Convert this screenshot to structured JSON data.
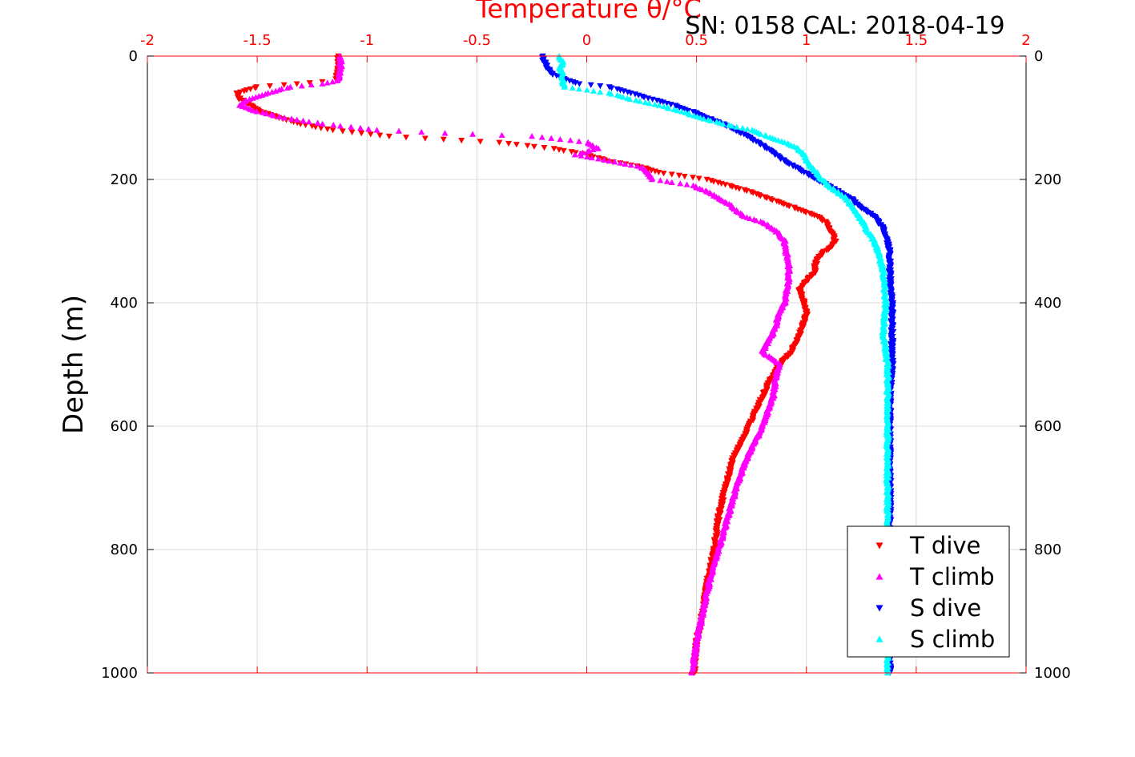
{
  "chart_data": {
    "type": "scatter",
    "title": "SN: 0158  CAL: 2018-04-19",
    "xlabel_top": "Temperature θ/°C",
    "ylabel": "Depth (m)",
    "xlim": [
      -2,
      2
    ],
    "ylim": [
      0,
      1000
    ],
    "y_reversed": true,
    "x_ticks": [
      "-2",
      "-1.5",
      "-1",
      "-0.5",
      "0",
      "0.5",
      "1",
      "1.5",
      "2"
    ],
    "x_tick_values": [
      -2,
      -1.5,
      -1,
      -0.5,
      0,
      0.5,
      1,
      1.5,
      2
    ],
    "y_ticks": [
      "0",
      "200",
      "400",
      "600",
      "800",
      "1000"
    ],
    "y_tick_values": [
      0,
      200,
      400,
      600,
      800,
      1000
    ],
    "grid": true,
    "legend_position": "bottom-right",
    "series": [
      {
        "name": "T dive",
        "color": "#ff0000",
        "marker": "triangle-down",
        "depth": [
          0,
          20,
          40,
          50,
          60,
          70,
          80,
          90,
          100,
          110,
          120,
          130,
          135,
          140,
          150,
          160,
          170,
          180,
          190,
          200,
          210,
          220,
          230,
          240,
          250,
          260,
          270,
          280,
          290,
          300,
          310,
          320,
          330,
          340,
          350,
          360,
          370,
          380,
          400,
          420,
          440,
          460,
          480,
          500,
          530,
          560,
          600,
          650,
          700,
          750,
          800,
          850,
          900,
          950,
          1000
        ],
        "temp": [
          -1.13,
          -1.13,
          -1.14,
          -1.5,
          -1.59,
          -1.58,
          -1.53,
          -1.48,
          -1.4,
          -1.3,
          -1.16,
          -0.9,
          -0.65,
          -0.4,
          -0.15,
          0.0,
          0.1,
          0.25,
          0.35,
          0.55,
          0.65,
          0.75,
          0.82,
          0.9,
          0.98,
          1.05,
          1.09,
          1.1,
          1.12,
          1.13,
          1.11,
          1.07,
          1.05,
          1.04,
          1.04,
          1.01,
          0.99,
          0.97,
          0.99,
          1.0,
          0.98,
          0.96,
          0.93,
          0.88,
          0.83,
          0.79,
          0.74,
          0.67,
          0.63,
          0.6,
          0.58,
          0.55,
          0.53,
          0.5,
          0.49
        ]
      },
      {
        "name": "T climb",
        "color": "#ff00ff",
        "marker": "triangle-up",
        "depth": [
          0,
          20,
          40,
          45,
          50,
          60,
          70,
          80,
          90,
          100,
          110,
          120,
          125,
          130,
          135,
          140,
          150,
          160,
          170,
          180,
          190,
          200,
          210,
          220,
          230,
          240,
          250,
          260,
          270,
          280,
          290,
          300,
          320,
          340,
          360,
          380,
          400,
          420,
          440,
          460,
          480,
          490,
          500,
          520,
          550,
          580,
          600,
          650,
          700,
          750,
          800,
          850,
          900,
          950,
          1000
        ],
        "temp": [
          -1.12,
          -1.12,
          -1.13,
          -1.2,
          -1.35,
          -1.45,
          -1.54,
          -1.58,
          -1.5,
          -1.38,
          -1.2,
          -0.95,
          -0.65,
          -0.25,
          -0.12,
          0.0,
          0.05,
          -0.05,
          0.1,
          0.25,
          0.28,
          0.3,
          0.48,
          0.55,
          0.6,
          0.65,
          0.68,
          0.72,
          0.8,
          0.85,
          0.88,
          0.9,
          0.91,
          0.92,
          0.92,
          0.91,
          0.9,
          0.87,
          0.86,
          0.83,
          0.8,
          0.84,
          0.88,
          0.86,
          0.85,
          0.82,
          0.8,
          0.73,
          0.68,
          0.64,
          0.6,
          0.56,
          0.53,
          0.5,
          0.48
        ]
      },
      {
        "name": "S dive",
        "color": "#0000ff",
        "marker": "triangle-down",
        "depth": [
          0,
          5,
          10,
          20,
          30,
          40,
          45,
          50,
          60,
          70,
          80,
          90,
          100,
          110,
          120,
          130,
          140,
          150,
          160,
          170,
          180,
          190,
          200,
          210,
          220,
          230,
          240,
          250,
          260,
          270,
          280,
          290,
          300,
          320,
          350,
          400,
          450,
          500,
          550,
          600,
          650,
          700,
          800,
          900,
          1000
        ],
        "temp": [
          -0.2,
          -0.2,
          -0.19,
          -0.18,
          -0.15,
          -0.08,
          -0.03,
          0.1,
          0.2,
          0.3,
          0.4,
          0.48,
          0.55,
          0.62,
          0.68,
          0.73,
          0.78,
          0.82,
          0.86,
          0.9,
          0.95,
          1.0,
          1.05,
          1.1,
          1.15,
          1.2,
          1.23,
          1.27,
          1.31,
          1.33,
          1.35,
          1.36,
          1.37,
          1.38,
          1.38,
          1.39,
          1.39,
          1.39,
          1.38,
          1.38,
          1.38,
          1.38,
          1.38,
          1.38,
          1.38
        ]
      },
      {
        "name": "S climb",
        "color": "#00ffff",
        "marker": "triangle-up",
        "depth": [
          0,
          5,
          10,
          20,
          30,
          40,
          50,
          60,
          70,
          80,
          90,
          100,
          110,
          120,
          130,
          140,
          150,
          160,
          170,
          180,
          190,
          200,
          210,
          220,
          230,
          240,
          250,
          260,
          270,
          280,
          290,
          300,
          320,
          350,
          400,
          450,
          500,
          550,
          600,
          650,
          700,
          800,
          900,
          1000
        ],
        "temp": [
          -0.12,
          -0.12,
          -0.11,
          -0.12,
          -0.11,
          -0.11,
          -0.1,
          0.1,
          0.2,
          0.33,
          0.43,
          0.52,
          0.62,
          0.75,
          0.82,
          0.9,
          0.96,
          0.99,
          1.0,
          1.02,
          1.05,
          1.07,
          1.1,
          1.14,
          1.18,
          1.2,
          1.22,
          1.24,
          1.26,
          1.27,
          1.29,
          1.31,
          1.33,
          1.35,
          1.36,
          1.35,
          1.37,
          1.37,
          1.37,
          1.37,
          1.37,
          1.37,
          1.37,
          1.37
        ]
      }
    ]
  }
}
